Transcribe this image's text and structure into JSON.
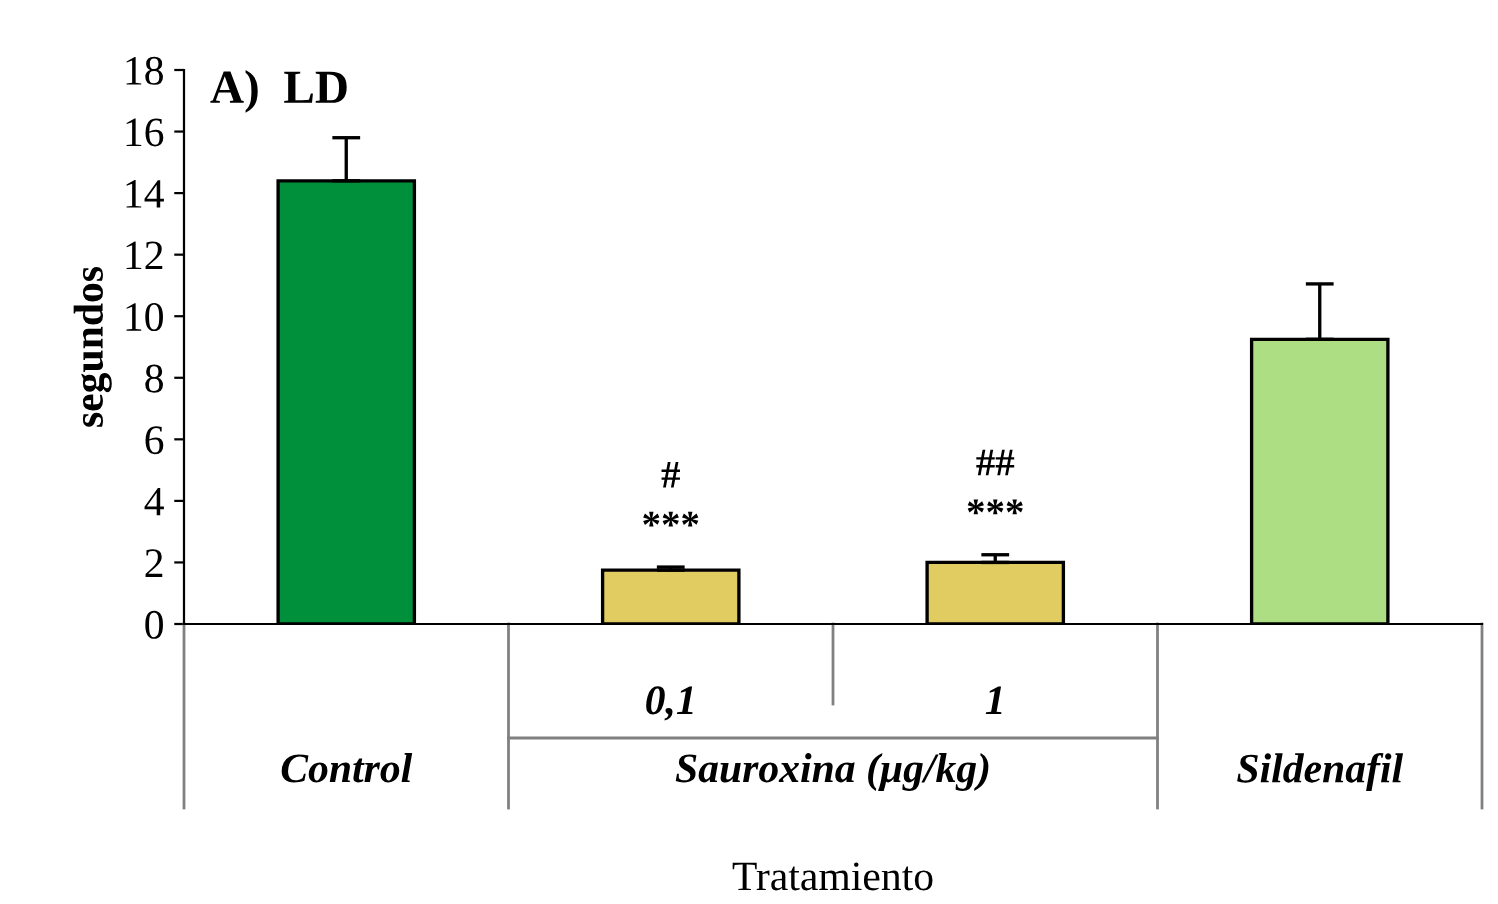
{
  "chart_data": {
    "type": "bar",
    "title": "A)  LD",
    "xlabel": "Tratamiento",
    "ylabel": "segundos",
    "categories": [
      "Control",
      "0,1",
      "1",
      "Sildenafil"
    ],
    "values": [
      14.4,
      1.75,
      2.0,
      9.25
    ],
    "colors": [
      "#00903c",
      "#e0cc60",
      "#e0cc60",
      "#aede84"
    ],
    "errors": [
      [
        14.4,
        15.8
      ],
      [
        1.75,
        1.85
      ],
      [
        2.0,
        2.25
      ],
      [
        9.25,
        11.05
      ]
    ],
    "ylim": [
      0,
      18
    ],
    "yticks": [
      0,
      2,
      4,
      6,
      8,
      10,
      12,
      14,
      16,
      18
    ],
    "grid": false,
    "annotations": [
      "***",
      "#",
      "***",
      "##",
      "Sauroxina (μg/kg)"
    ]
  }
}
